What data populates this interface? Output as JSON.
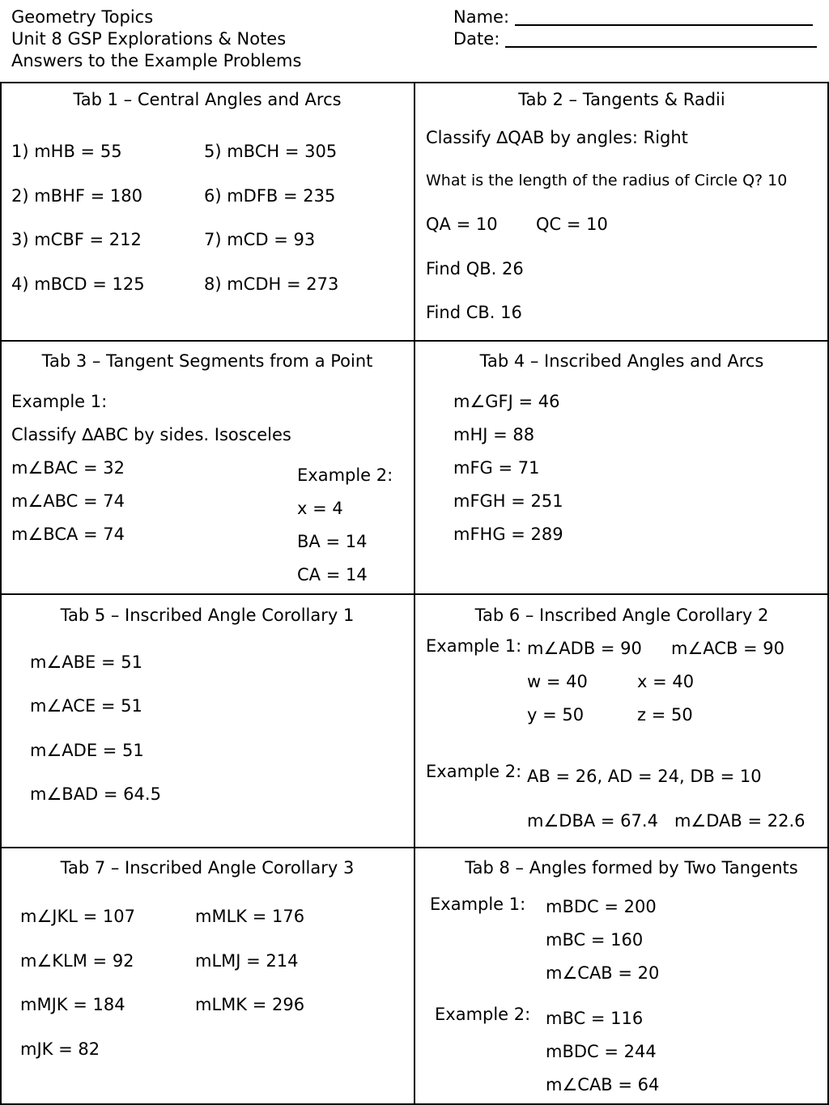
{
  "header": {
    "left": [
      "Geometry Topics",
      "Unit 8 GSP Explorations & Notes",
      "Answers to the Example Problems"
    ],
    "name_label": "Name:",
    "date_label": "Date:"
  },
  "tab1": {
    "title": "Tab 1 – Central Angles and Arcs",
    "items": [
      "1) mHB = 55",
      "2) mBHF = 180",
      "3) mCBF = 212",
      "4) mBCD = 125",
      "5) mBCH = 305",
      "6) mDFB = 235",
      "7) mCD = 93",
      "8) mCDH = 273"
    ]
  },
  "tab2": {
    "title": "Tab 2 – Tangents & Radii",
    "lines": [
      "Classify ∆QAB by angles: Right",
      "What is the length of the radius of Circle Q? 10",
      "QA = 10",
      "QC = 10",
      "Find QB. 26",
      "Find CB. 16"
    ]
  },
  "tab3": {
    "title": "Tab 3 – Tangent Segments from a Point",
    "ex1_label": "Example 1:",
    "ex1_lines": [
      "Classify ∆ABC by sides.  Isosceles",
      "m∠BAC = 32",
      "m∠ABC = 74",
      "m∠BCA = 74"
    ],
    "ex2_label": "Example 2:",
    "ex2_lines": [
      "x = 4",
      "BA = 14",
      "CA = 14"
    ]
  },
  "tab4": {
    "title": "Tab 4 – Inscribed Angles and Arcs",
    "lines": [
      "m∠GFJ = 46",
      "mHJ = 88",
      "mFG = 71",
      "mFGH = 251",
      "mFHG = 289"
    ]
  },
  "tab5": {
    "title": "Tab 5 – Inscribed Angle Corollary 1",
    "lines": [
      "m∠ABE = 51",
      "m∠ACE = 51",
      "m∠ADE = 51",
      "m∠BAD = 64.5"
    ]
  },
  "tab6": {
    "title": "Tab 6 – Inscribed Angle Corollary 2",
    "ex1_label": "Example 1:",
    "ex1_lines": [
      "m∠ADB = 90",
      "m∠ACB = 90",
      "w = 40",
      "x = 40",
      "y = 50",
      "z = 50"
    ],
    "ex2_label": "Example 2:",
    "ex2_lines": [
      "AB = 26, AD = 24, DB = 10",
      "m∠DBA = 67.4   m∠DAB = 22.6"
    ]
  },
  "tab7": {
    "title": "Tab 7 – Inscribed Angle Corollary 3",
    "items": [
      "m∠JKL = 107",
      "m∠KLM = 92",
      "mMJK = 184",
      "mJK = 82",
      "mMLK = 176",
      "mLMJ = 214",
      "mLMK = 296"
    ]
  },
  "tab8": {
    "title": "Tab 8 – Angles formed by Two Tangents",
    "ex1_label": "Example 1:",
    "ex1_lines": [
      "mBDC = 200",
      "mBC = 160",
      "m∠CAB = 20"
    ],
    "ex2_label": "Example 2:",
    "ex2_lines": [
      "mBC = 116",
      "mBDC = 244",
      "m∠CAB = 64"
    ]
  }
}
